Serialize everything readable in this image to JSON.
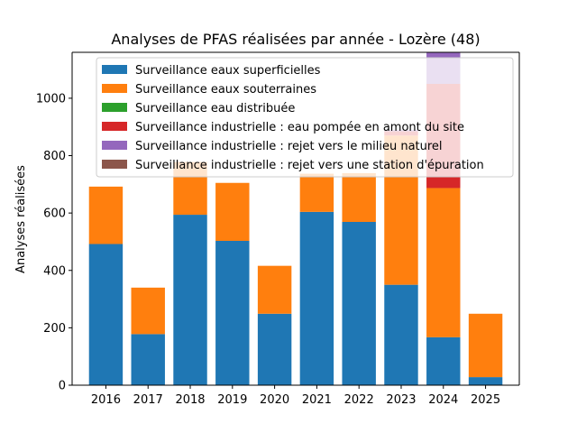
{
  "chart_data": {
    "type": "bar",
    "stacked": true,
    "title": "Analyses de PFAS réalisées par année - Lozère (48)",
    "xlabel": "",
    "ylabel": "Analyses réalisées",
    "ylim": [
      0,
      1160
    ],
    "yticks": [
      0,
      200,
      400,
      600,
      800,
      1000
    ],
    "grid": false,
    "legend_position": "upper-left",
    "categories": [
      "2016",
      "2017",
      "2018",
      "2019",
      "2020",
      "2021",
      "2022",
      "2023",
      "2024",
      "2025"
    ],
    "series": [
      {
        "name": "Surveillance eaux superficielles",
        "color": "#1f77b4",
        "values": [
          492,
          178,
          594,
          503,
          249,
          604,
          569,
          350,
          167,
          28
        ]
      },
      {
        "name": "Surveillance eaux souterraines",
        "color": "#ff7f0e",
        "values": [
          200,
          162,
          184,
          202,
          167,
          133,
          170,
          520,
          520,
          221
        ]
      },
      {
        "name": "Surveillance eau distribuée",
        "color": "#2ca02c",
        "values": [
          0,
          0,
          0,
          0,
          0,
          0,
          0,
          0,
          0,
          0
        ]
      },
      {
        "name": "Surveillance industrielle : eau pompée en amont du site",
        "color": "#d62728",
        "values": [
          0,
          0,
          0,
          0,
          0,
          0,
          0,
          15,
          363,
          0
        ]
      },
      {
        "name": "Surveillance industrielle : rejet vers le milieu naturel",
        "color": "#9467bd",
        "values": [
          0,
          0,
          0,
          0,
          0,
          0,
          0,
          5,
          200,
          0
        ]
      },
      {
        "name": "Surveillance industrielle : rejet vers une station d'épuration",
        "color": "#8c564b",
        "values": [
          0,
          0,
          0,
          0,
          0,
          0,
          0,
          0,
          0,
          0
        ]
      }
    ]
  }
}
